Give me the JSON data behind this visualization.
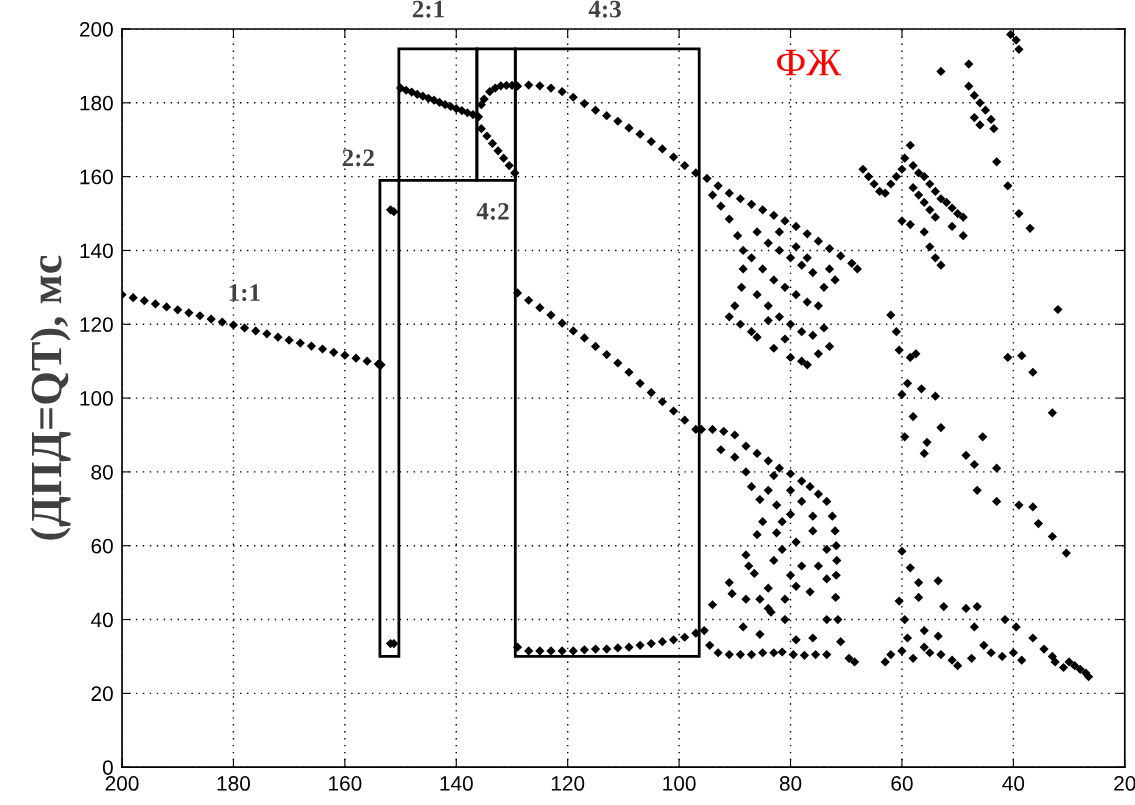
{
  "chart_data": {
    "type": "scatter",
    "ylabel": "(ДПД=QT), мс",
    "xlim": [
      200,
      20
    ],
    "ylim": [
      0,
      200
    ],
    "xticks": [
      200,
      180,
      160,
      140,
      120,
      100,
      80,
      60,
      40,
      20
    ],
    "yticks": [
      0,
      20,
      40,
      60,
      80,
      100,
      120,
      140,
      160,
      180,
      200
    ],
    "grid": true,
    "marker": "diamond",
    "series": [
      {
        "color": "#000000",
        "x": [
          200,
          198,
          196,
          194,
          192,
          190,
          188,
          186,
          184,
          182,
          180,
          178,
          176,
          174,
          172,
          170,
          168,
          166,
          164,
          162,
          160,
          158,
          156,
          154,
          153.5
        ],
        "values": [
          128,
          127.2,
          126.4,
          125.5,
          124.7,
          123.9,
          123.1,
          122.3,
          121.4,
          120.6,
          119.8,
          119,
          118.2,
          117.4,
          116.5,
          115.7,
          114.9,
          114.1,
          113.3,
          112.4,
          111.6,
          110.8,
          110,
          109.2,
          109
        ]
      },
      {
        "color": "#000000",
        "x": [
          151.8,
          151.2,
          151.8,
          151.2
        ],
        "values": [
          151,
          150.5,
          33.5,
          33.5
        ]
      },
      {
        "color": "#000000",
        "x": [
          150,
          149,
          148,
          147,
          146,
          145,
          144,
          143,
          142,
          141,
          140,
          139,
          138,
          137,
          136,
          135.5,
          135,
          134,
          133,
          132,
          131,
          130,
          135.5,
          134.5,
          133.5,
          132.5,
          131.5,
          130.5,
          129.5
        ],
        "values": [
          184,
          183.4,
          182.9,
          182.3,
          181.8,
          181.2,
          180.7,
          180.1,
          179.5,
          179,
          178.4,
          177.9,
          177.3,
          176.8,
          176.2,
          179.5,
          181,
          183,
          184,
          184.6,
          184.7,
          184.7,
          173,
          171,
          169,
          167,
          165,
          163,
          161
        ]
      },
      {
        "color": "#000000",
        "x": [
          129,
          127,
          125,
          123,
          121,
          119,
          117,
          115,
          113,
          111,
          109,
          107,
          105,
          103,
          101,
          99,
          97,
          129,
          127,
          125,
          123,
          121,
          119,
          117,
          115,
          113,
          111,
          109,
          107,
          105,
          103,
          101,
          99,
          97,
          129,
          127,
          125,
          123,
          121,
          119,
          117,
          115,
          113,
          111,
          109,
          107,
          105,
          103,
          101,
          99,
          97
        ],
        "values": [
          184.5,
          184.8,
          184.6,
          184,
          183,
          181.5,
          179.8,
          178,
          176.5,
          175,
          173.2,
          171.5,
          169.5,
          167.5,
          165.3,
          163,
          161,
          128.5,
          126.5,
          124.5,
          122.5,
          120.3,
          118.2,
          116.3,
          114,
          111.8,
          109.5,
          107,
          104,
          101.5,
          99,
          96.5,
          94,
          91.5,
          32.5,
          31.5,
          31.5,
          31.5,
          31.5,
          31.5,
          31.8,
          32,
          32,
          32.3,
          32.5,
          33,
          33.5,
          34,
          34.5,
          35.2,
          36.3
        ]
      },
      {
        "color": "#000000",
        "x": [
          95,
          93,
          91,
          89,
          87,
          85,
          83,
          81,
          79,
          77,
          75,
          73,
          71,
          69,
          68,
          94,
          92.5,
          91,
          89.5,
          88.5,
          88.5,
          88.8,
          90,
          91,
          89,
          87,
          86,
          84,
          83,
          81,
          80,
          78,
          77,
          75,
          73,
          86,
          84,
          82,
          80,
          78,
          76,
          87,
          85,
          83,
          81,
          79,
          77,
          75,
          74,
          86,
          84,
          82,
          80,
          78,
          76,
          74,
          79,
          82,
          77,
          73,
          72
        ],
        "values": [
          159.5,
          157.5,
          155.5,
          154,
          152.5,
          151,
          149.5,
          148,
          146.5,
          144.5,
          142.5,
          140.5,
          138.5,
          136.5,
          135,
          155,
          152,
          148.5,
          144,
          140,
          135,
          130,
          125,
          122,
          120,
          118,
          116.5,
          121,
          113.5,
          116,
          111,
          110,
          109,
          112,
          114,
          145,
          142,
          140,
          138,
          136,
          134,
          138,
          135,
          132,
          130,
          128,
          126,
          125,
          130,
          128,
          125,
          122,
          120,
          118,
          117,
          119,
          141,
          145,
          138,
          135,
          132
        ]
      },
      {
        "color": "#000000",
        "x": [
          67,
          66,
          65,
          64,
          63,
          62,
          61,
          60,
          58.5,
          59.5,
          58,
          57,
          56,
          55,
          54,
          53,
          52,
          51,
          50,
          49,
          58,
          57,
          56,
          55,
          54,
          60,
          58.5,
          56,
          55,
          54,
          53,
          51,
          49,
          40.5,
          39.5,
          39,
          53,
          48,
          48,
          47,
          46,
          45,
          44,
          43.5,
          47,
          46,
          43,
          41,
          39,
          37,
          32,
          62,
          61,
          60.5,
          58.5,
          57.5,
          59,
          56.5,
          41,
          38.5,
          36.5,
          33,
          60,
          54,
          58,
          53,
          59.5,
          56,
          55.5,
          48.5,
          47,
          45.5,
          46.5,
          43,
          43,
          39,
          36.5,
          35.5,
          33,
          30.5
        ],
        "values": [
          162,
          160,
          158,
          156,
          155.5,
          158,
          160,
          162,
          168.5,
          165,
          163,
          161,
          160,
          158,
          156,
          154,
          153,
          151.5,
          150,
          149,
          157,
          155,
          153,
          151,
          149,
          148,
          147,
          145,
          141,
          138,
          136,
          146.5,
          144,
          198.5,
          197,
          194.5,
          188.5,
          190.5,
          184.5,
          182,
          180,
          178,
          175.5,
          173,
          176,
          174,
          164,
          157.5,
          150,
          146,
          124,
          122.5,
          118,
          113,
          111,
          112,
          104,
          102.5,
          111,
          111.5,
          107,
          96,
          101,
          100.5,
          95,
          92,
          89.5,
          85,
          88,
          84.5,
          82,
          89.5,
          75,
          81,
          72,
          71,
          70.5,
          66,
          62.5,
          58
        ]
      },
      {
        "color": "#000000",
        "x": [
          96,
          94,
          92,
          90,
          88,
          86,
          84,
          82,
          80,
          78,
          76.5,
          75,
          73.5,
          72.5,
          72,
          71.8,
          71.7,
          71.8,
          71.9,
          71.5,
          71,
          69.5,
          68.5,
          95.5,
          94.5,
          93,
          91,
          89,
          87,
          85,
          83,
          81.5,
          79.5,
          77.5,
          75.5,
          73.5,
          94,
          91,
          88,
          86,
          85,
          92.5,
          90,
          88,
          87,
          85.5,
          90.5,
          88,
          85.5,
          84,
          81,
          81,
          88.5,
          85.5,
          83.5,
          79,
          76.5,
          75,
          78,
          81.5,
          79,
          76,
          82.5,
          80,
          81.5,
          84,
          76,
          73.5,
          73.5,
          73.5,
          76,
          79,
          84,
          86.5,
          82.5,
          87.5,
          83,
          80,
          78,
          83,
          80
        ],
        "values": [
          91.5,
          91.5,
          91,
          90,
          87,
          85,
          83,
          81,
          79.5,
          77.5,
          76,
          74,
          72,
          68,
          64,
          60,
          56,
          52,
          46,
          40,
          34,
          29.5,
          28.5,
          37,
          33,
          31,
          30.5,
          30.5,
          30.5,
          31,
          31,
          31.2,
          30.5,
          30.3,
          30.5,
          30.5,
          44,
          50,
          57.5,
          63,
          66.5,
          86,
          84,
          80,
          76,
          72.5,
          47,
          45.5,
          45.5,
          43,
          45.5,
          40,
          38,
          36,
          42,
          49,
          47.5,
          54.5,
          54.5,
          59,
          61,
          64,
          71,
          68.5,
          66.5,
          75,
          68,
          59,
          51,
          40,
          35,
          34.5,
          48.5,
          52.5,
          63.5,
          54.5,
          79,
          75,
          72,
          56,
          52
        ]
      },
      {
        "color": "#000000",
        "x": [
          60,
          58.5,
          53.5,
          60.5,
          57,
          52.5,
          59.5,
          56,
          53.5,
          62,
          63,
          58,
          55,
          53,
          50,
          47.5,
          48.5,
          46.5,
          47,
          45.3,
          41.5,
          39.5,
          42,
          36.5,
          38.5,
          34.5,
          32.5,
          30,
          28,
          26.5,
          27,
          57,
          59,
          56,
          44,
          40,
          33,
          31,
          29,
          51,
          60
        ],
        "values": [
          58.5,
          54,
          50.5,
          45,
          46,
          43.5,
          40,
          37,
          35.5,
          30.5,
          28.5,
          29.5,
          31,
          30.5,
          27.5,
          29.5,
          43,
          43.5,
          38,
          33,
          40,
          38,
          30,
          35,
          29,
          32,
          28.5,
          28.5,
          26.5,
          24.5,
          25.5,
          50,
          35,
          32.5,
          31,
          31,
          30,
          27,
          27.5,
          29,
          31.5
        ]
      }
    ],
    "annotations": [
      "1:1",
      "2:2",
      "2:1",
      "4:2",
      "4:3",
      "ФЖ"
    ]
  }
}
